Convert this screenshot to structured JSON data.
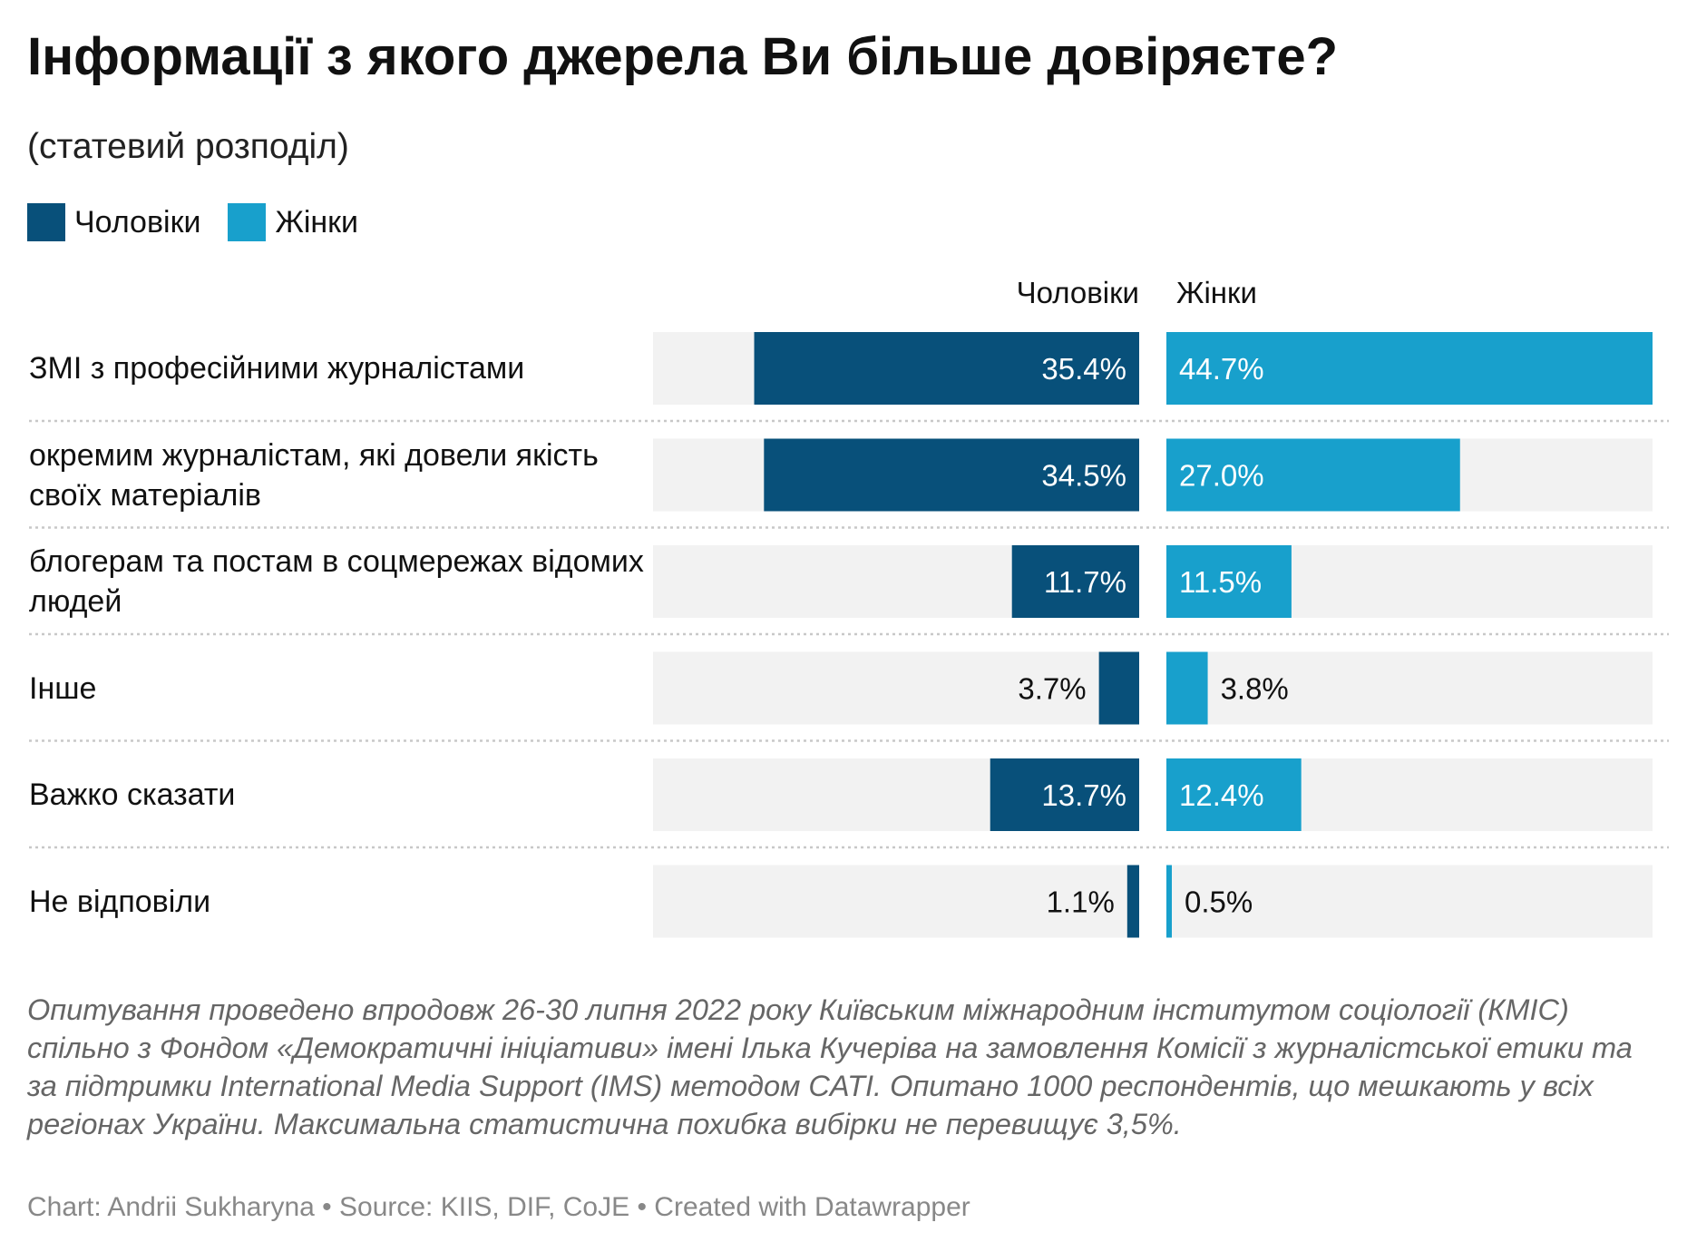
{
  "title": "Інформації з якого джерела Ви більше довіряєте?",
  "subtitle": "(статевий розподіл)",
  "colors": {
    "men": "#08507a",
    "women": "#18a0cc",
    "track": "#f2f2f2",
    "divider": "#c8c8c8"
  },
  "chart_data": {
    "type": "bar",
    "orientation": "horizontal-split",
    "legend_placement": "top-left",
    "xlim": [
      0,
      44.7
    ],
    "categories": [
      "ЗМІ з професійними журналістами",
      "окремим журналістам, які довели якість своїх матеріалів",
      "блогерам та постам в соцмережах відомих людей",
      "Інше",
      "Важко сказати",
      "Не відповіли"
    ],
    "series": [
      {
        "name": "Чоловіки",
        "values": [
          35.4,
          34.5,
          11.7,
          3.7,
          13.7,
          1.1
        ],
        "labels": [
          "35.4%",
          "34.5%",
          "11.7%",
          "3.7%",
          "13.7%",
          "1.1%"
        ]
      },
      {
        "name": "Жінки",
        "values": [
          44.7,
          27.0,
          11.5,
          3.8,
          12.4,
          0.5
        ],
        "labels": [
          "44.7%",
          "27.0%",
          "11.5%",
          "3.8%",
          "12.4%",
          "0.5%"
        ]
      }
    ]
  },
  "notes": "Опитування проведено впродовж 26-30 липня 2022 року Київським міжнародним інститутом соціології (КМІС) спільно з Фондом «Демократичні ініціативи» імені Ілька Кучеріва на замовлення Комісії з журналістської етики та за підтримки International Media Support (IMS) методом CATI. Опитано 1000 респондентів, що мешкають у всіх регіонах України. Максимальна статистична похибка вибірки не перевищує 3,5%.",
  "source": "Chart: Andrii Sukharyna • Source: KIIS, DIF, CoJE • Created with Datawrapper"
}
